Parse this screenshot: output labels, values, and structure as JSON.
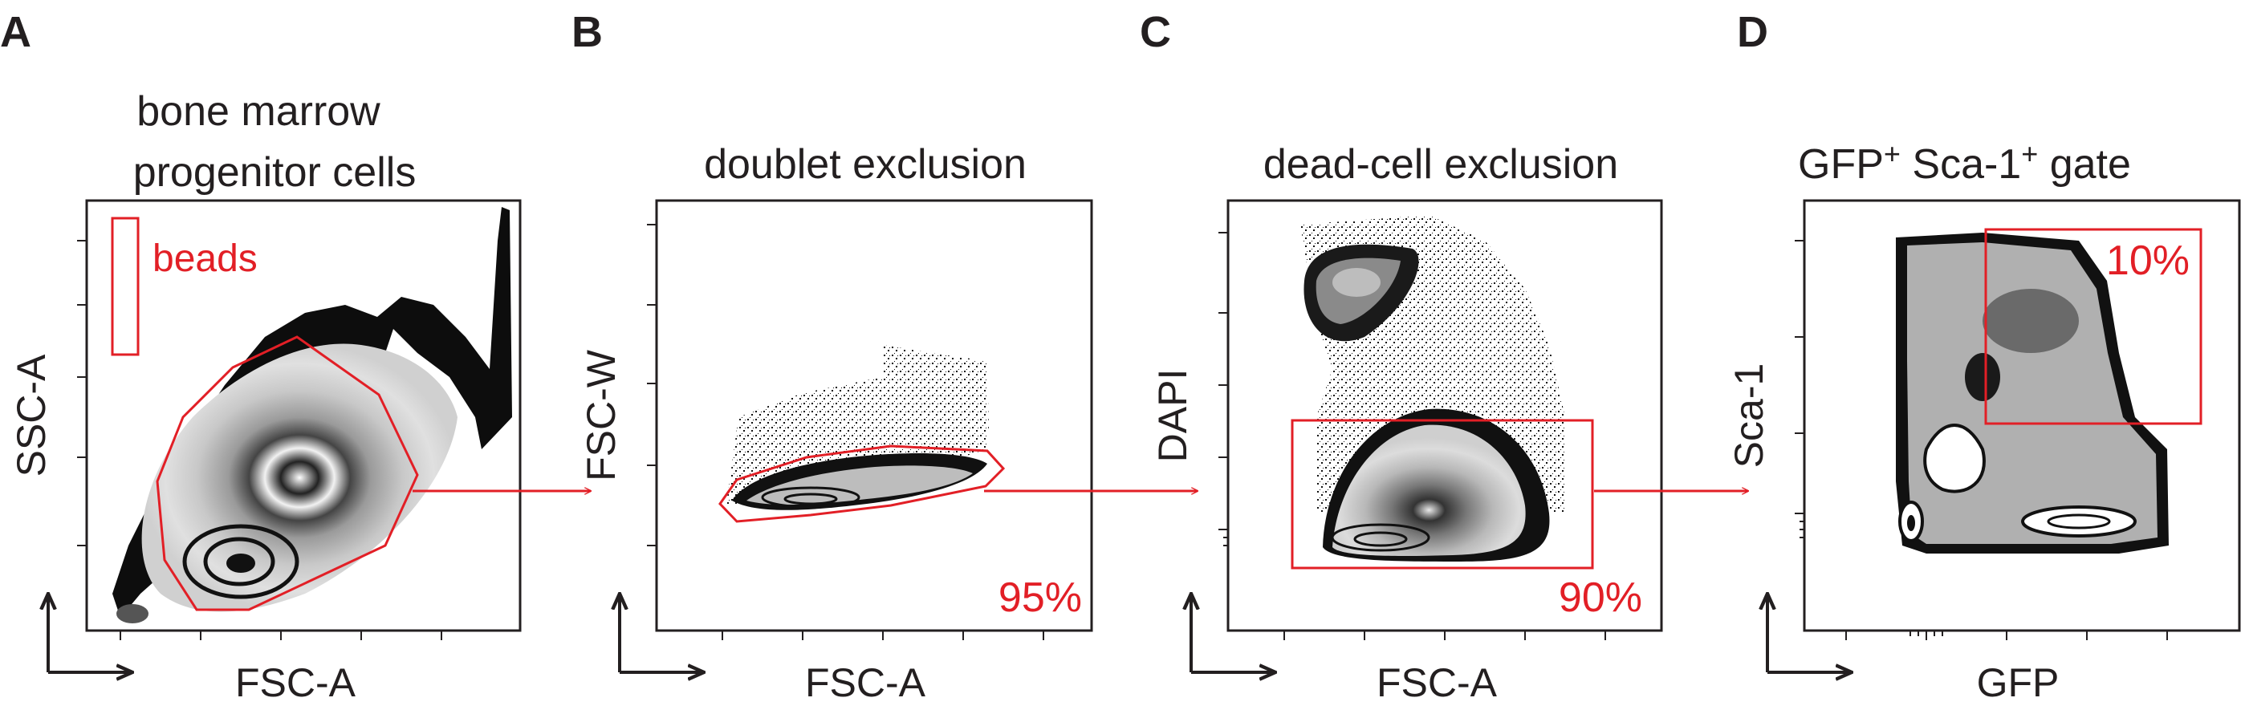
{
  "figure": {
    "accent_color": "#e21f26",
    "ink_color": "#231f20",
    "panels": [
      {
        "letter": "A",
        "title_lines": [
          "bone marrow",
          "progenitor cells"
        ],
        "xlabel": "FSC-A",
        "ylabel": "SSC-A",
        "gate_label": "beads",
        "percentage": ""
      },
      {
        "letter": "B",
        "title_lines": [
          "doublet exclusion"
        ],
        "xlabel": "FSC-A",
        "ylabel": "FSC-W",
        "gate_label": "",
        "percentage": "95%"
      },
      {
        "letter": "C",
        "title_lines": [
          "dead-cell exclusion"
        ],
        "xlabel": "FSC-A",
        "ylabel": "DAPI",
        "gate_label": "",
        "percentage": "90%"
      },
      {
        "letter": "D",
        "title_parts": {
          "a": "GFP",
          "sup1": "+",
          "b": " Sca-1",
          "sup2": "+",
          "c": " gate"
        },
        "xlabel": "GFP",
        "ylabel": "Sca-1",
        "gate_label": "",
        "percentage": "10%"
      }
    ]
  }
}
